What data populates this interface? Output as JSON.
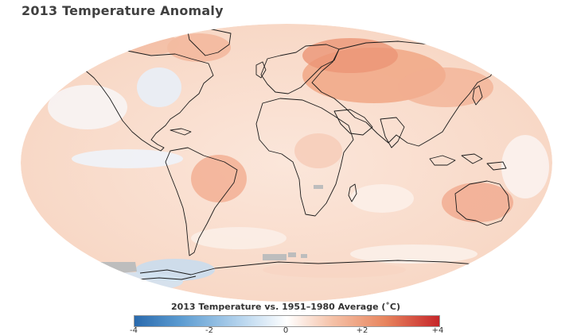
{
  "title": "2013 Temperature Anomaly",
  "legend": {
    "title": "2013 Temperature vs. 1951–1980 Average (˚C)",
    "ticks": [
      "-4",
      "-2",
      "0",
      "+2",
      "+4"
    ],
    "range": [
      -4,
      4
    ]
  },
  "colors": {
    "cold": "#2a6aad",
    "neutral": "#ffffff",
    "warm": "#c6262a",
    "no_data": "#bdbdbd"
  }
}
